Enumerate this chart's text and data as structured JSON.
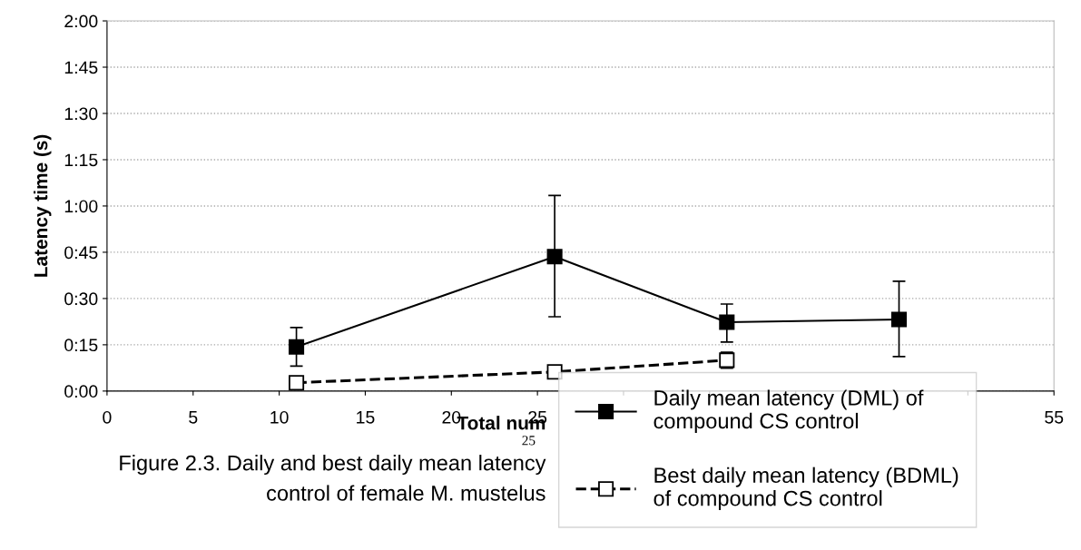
{
  "chart_data": {
    "type": "line",
    "xlabel": "Total num",
    "ylabel": "Latency time (s)",
    "annotations": [
      "25",
      "Figure 2.3. Daily and best daily mean latency",
      "control of female M. mustelus"
    ],
    "x": [
      11,
      26,
      36,
      46
    ],
    "series": [
      {
        "name": "Daily mean latency (DML) of\ncompound CS control",
        "color": "#000000",
        "marker": "square",
        "line_style": "solid",
        "values": [
          14.3,
          43.6,
          22.3,
          23.2
        ],
        "errors": [
          [
            8.1,
            20.6
          ],
          [
            24.1,
            63.4
          ],
          [
            15.9,
            28.2
          ],
          [
            11.2,
            35.6
          ]
        ]
      },
      {
        "name": "Best daily mean latency (BDML)\nof compound CS control",
        "color": "#000000",
        "marker": "square",
        "line_style": "dashed",
        "values": [
          2.7,
          6.2,
          10.0,
          null
        ],
        "errors": [
          null,
          null,
          2.6,
          null
        ]
      }
    ],
    "xlim": [
      0,
      55
    ],
    "xticks": [
      0,
      5,
      10,
      15,
      20,
      25,
      {
        "value": 30,
        "label": null
      },
      {
        "value": 35,
        "label": null
      },
      {
        "value": 40,
        "label": null
      },
      {
        "value": 45,
        "label": null
      },
      {
        "value": 50,
        "label": null
      },
      55
    ],
    "ylim": [
      0,
      120
    ],
    "yticks": [
      {
        "value": 0,
        "label": "0:00"
      },
      {
        "value": 15,
        "label": "0:15"
      },
      {
        "value": 30,
        "label": "0:30"
      },
      {
        "value": 45,
        "label": "0:45"
      },
      {
        "value": 60,
        "label": "1:00"
      },
      {
        "value": 75,
        "label": "1:15"
      },
      {
        "value": 90,
        "label": "1:30"
      },
      {
        "value": 105,
        "label": "1:45"
      },
      {
        "value": 120,
        "label": "2:00"
      }
    ],
    "grid": "y",
    "legend": "bottom right"
  }
}
